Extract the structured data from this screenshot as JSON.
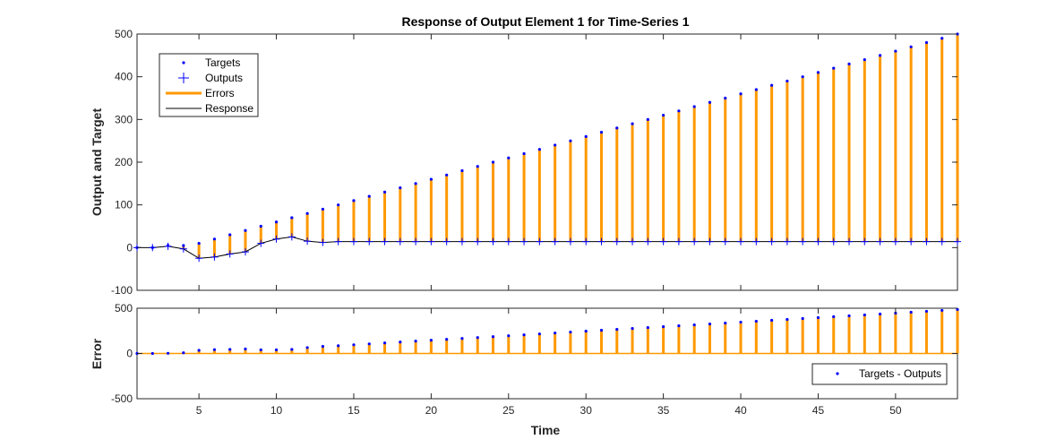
{
  "colors": {
    "target": "#0000ff",
    "output": "#0000ff",
    "error": "#ff9900",
    "response": "#000000",
    "axis": "#262626"
  },
  "chart_data": [
    {
      "type": "line",
      "title": "Response of Output Element 1 for Time-Series 1",
      "xlabel": "",
      "ylabel": "Output and Target",
      "xlim": [
        1,
        54
      ],
      "ylim": [
        -100,
        500
      ],
      "xticks": [
        5,
        10,
        15,
        20,
        25,
        30,
        35,
        40,
        45,
        50
      ],
      "xticklabels": [
        "",
        "",
        "",
        "",
        "",
        "",
        "",
        "",
        "",
        ""
      ],
      "yticks": [
        -100,
        0,
        100,
        200,
        300,
        400,
        500
      ],
      "yticklabels": [
        "-100",
        "0",
        "100",
        "200",
        "300",
        "400",
        "500"
      ],
      "grid": false,
      "legend": {
        "placement": "top-left",
        "entries": [
          {
            "label": "Targets",
            "marker": "dot",
            "color": "#0000ff"
          },
          {
            "label": "Outputs",
            "marker": "plus",
            "color": "#0000ff"
          },
          {
            "label": "Errors",
            "marker": "thick-line",
            "color": "#ff9900"
          },
          {
            "label": "Response",
            "marker": "line",
            "color": "#000000"
          }
        ]
      },
      "x": [
        1,
        2,
        3,
        4,
        5,
        6,
        7,
        8,
        9,
        10,
        11,
        12,
        13,
        14,
        15,
        16,
        17,
        18,
        19,
        20,
        21,
        22,
        23,
        24,
        25,
        26,
        27,
        28,
        29,
        30,
        31,
        32,
        33,
        34,
        35,
        36,
        37,
        38,
        39,
        40,
        41,
        42,
        43,
        44,
        45,
        46,
        47,
        48,
        49,
        50,
        51,
        52,
        53,
        54
      ],
      "series": [
        {
          "name": "Targets",
          "values": [
            0,
            0,
            5,
            5,
            10,
            20,
            30,
            40,
            50,
            60,
            70,
            80,
            90,
            100,
            110,
            120,
            130,
            140,
            150,
            160,
            170,
            180,
            190,
            200,
            210,
            220,
            230,
            240,
            250,
            260,
            270,
            280,
            290,
            300,
            310,
            320,
            330,
            340,
            350,
            360,
            370,
            380,
            390,
            400,
            410,
            420,
            430,
            440,
            450,
            460,
            470,
            480,
            490,
            500
          ]
        },
        {
          "name": "Outputs",
          "values": [
            0,
            0,
            3,
            -3,
            -25,
            -22,
            -15,
            -10,
            10,
            20,
            25,
            15,
            12,
            14,
            14,
            14,
            14,
            14,
            14,
            14,
            14,
            14,
            14,
            14,
            14,
            14,
            14,
            14,
            14,
            14,
            14,
            14,
            14,
            14,
            14,
            14,
            14,
            14,
            14,
            14,
            14,
            14,
            14,
            14,
            14,
            14,
            14,
            14,
            14,
            14,
            14,
            14,
            14,
            14
          ]
        }
      ]
    },
    {
      "type": "line",
      "title": "",
      "xlabel": "Time",
      "ylabel": "Error",
      "xlim": [
        1,
        54
      ],
      "ylim": [
        -500,
        500
      ],
      "xticks": [
        5,
        10,
        15,
        20,
        25,
        30,
        35,
        40,
        45,
        50
      ],
      "xticklabels": [
        "5",
        "10",
        "15",
        "20",
        "25",
        "30",
        "35",
        "40",
        "45",
        "50"
      ],
      "yticks": [
        -500,
        0,
        500
      ],
      "yticklabels": [
        "-500",
        "0",
        "500"
      ],
      "grid": false,
      "legend": {
        "placement": "bottom-right",
        "entries": [
          {
            "label": "Targets - Outputs",
            "marker": "dot",
            "color": "#0000ff"
          }
        ]
      },
      "series": [
        {
          "name": "Targets - Outputs",
          "values": [
            0,
            0,
            2,
            8,
            35,
            42,
            45,
            50,
            40,
            40,
            45,
            65,
            78,
            86,
            96,
            106,
            116,
            126,
            136,
            146,
            156,
            166,
            176,
            186,
            196,
            206,
            216,
            226,
            236,
            246,
            256,
            266,
            276,
            286,
            296,
            306,
            316,
            326,
            336,
            346,
            356,
            366,
            376,
            386,
            396,
            406,
            416,
            426,
            436,
            446,
            456,
            466,
            476,
            486
          ]
        }
      ]
    }
  ]
}
